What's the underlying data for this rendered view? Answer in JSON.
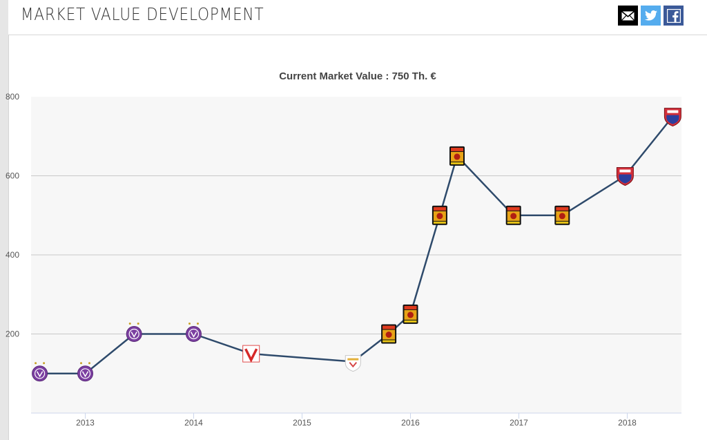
{
  "header": {
    "title": "MARKET VALUE DEVELOPMENT",
    "share_buttons": [
      {
        "name": "email",
        "icon": "mail-icon",
        "color": "#000000"
      },
      {
        "name": "twitter",
        "icon": "twitter-icon",
        "color": "#55acee"
      },
      {
        "name": "facebook",
        "icon": "facebook-icon",
        "color": "#3b5998"
      }
    ]
  },
  "chart_data": {
    "type": "line",
    "title": "Current Market Value : 750 Th. €",
    "xlabel": "",
    "ylabel": "",
    "ylim": [
      0,
      800
    ],
    "yticks": [
      200,
      400,
      600,
      800
    ],
    "xlim": [
      2012.5,
      2018.5
    ],
    "xticks": [
      2013,
      2014,
      2015,
      2016,
      2017,
      2018
    ],
    "grid": true,
    "line_color": "#2e4a6b",
    "series": [
      {
        "name": "Market value",
        "points": [
          {
            "x": 2012.58,
            "y": 100,
            "club": "violet"
          },
          {
            "x": 2013.0,
            "y": 100,
            "club": "violet"
          },
          {
            "x": 2013.45,
            "y": 200,
            "club": "violet"
          },
          {
            "x": 2014.0,
            "y": 200,
            "club": "violet"
          },
          {
            "x": 2014.53,
            "y": 150,
            "club": "redv"
          },
          {
            "x": 2015.47,
            "y": 130,
            "club": "whitecrest"
          },
          {
            "x": 2015.8,
            "y": 200,
            "club": "lion"
          },
          {
            "x": 2016.0,
            "y": 250,
            "club": "lion"
          },
          {
            "x": 2016.27,
            "y": 500,
            "club": "lion"
          },
          {
            "x": 2016.43,
            "y": 650,
            "club": "lion"
          },
          {
            "x": 2016.95,
            "y": 500,
            "club": "lion"
          },
          {
            "x": 2017.4,
            "y": 500,
            "club": "lion"
          },
          {
            "x": 2017.98,
            "y": 600,
            "club": "redblue"
          },
          {
            "x": 2018.42,
            "y": 750,
            "club": "redblue"
          }
        ]
      }
    ]
  }
}
